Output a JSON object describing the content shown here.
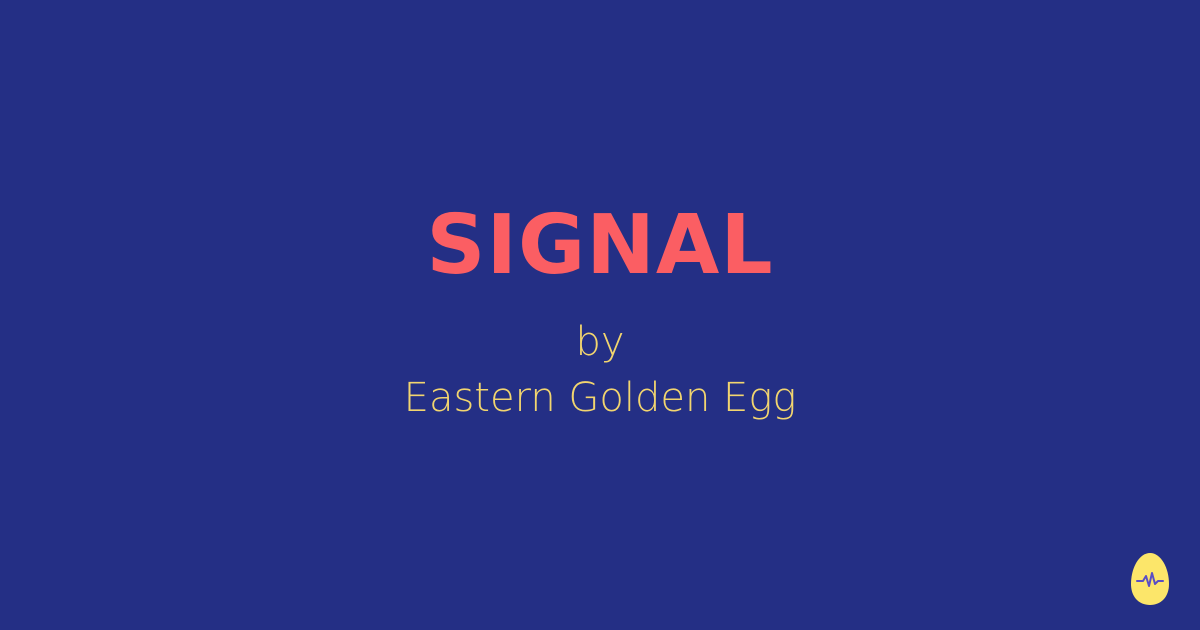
{
  "card": {
    "title": "SIGNAL",
    "byline": "by",
    "author": "Eastern Golden Egg"
  },
  "logo": {
    "icon": "egg-pulse-icon"
  },
  "colors": {
    "background": "#242f85",
    "title": "#fb5e63",
    "subtitle": "#f2d56f",
    "logo_fill": "#fce66a",
    "logo_pulse": "#5a4ec4"
  }
}
